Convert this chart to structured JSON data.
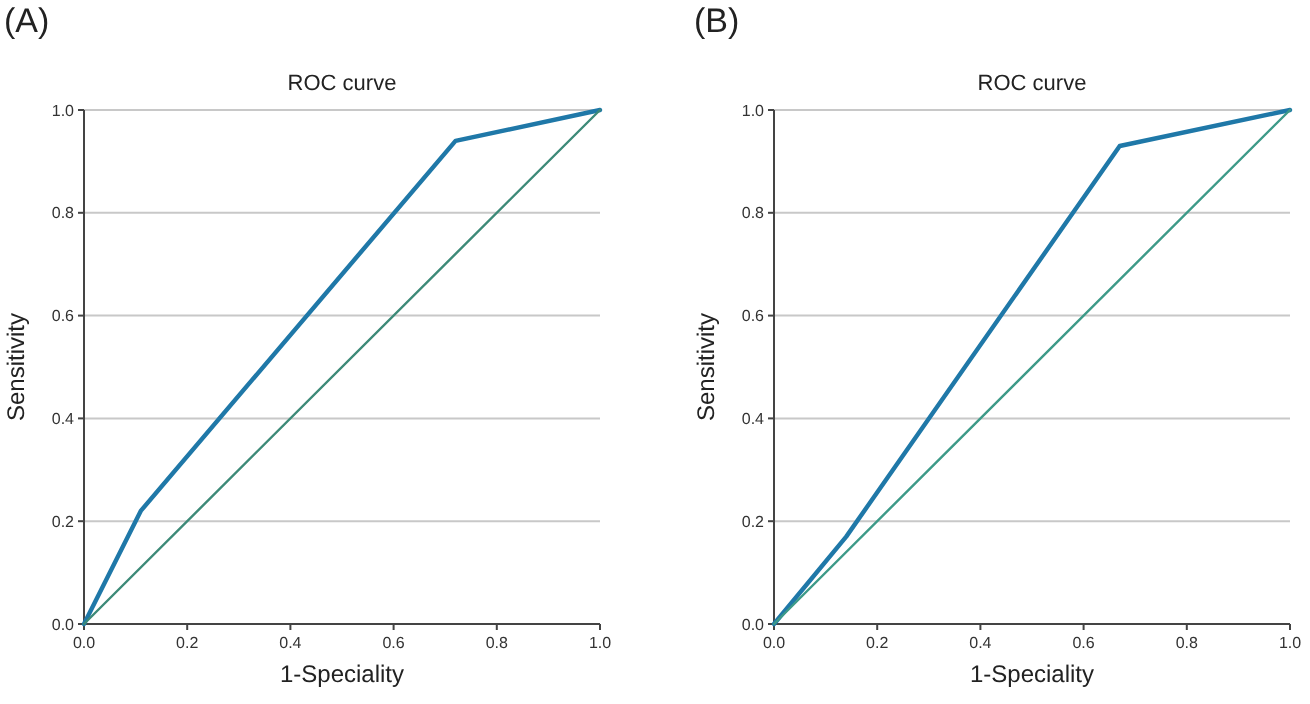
{
  "chart_data": [
    {
      "type": "line",
      "title": "ROC curve",
      "xlabel": "1-Speciality",
      "ylabel": "Sensitivity",
      "annotations": [
        "(A)"
      ],
      "xlim": [
        0,
        1
      ],
      "ylim": [
        0,
        1
      ],
      "xticks": [
        {
          "value": 0,
          "label": "0.0"
        },
        {
          "value": 0.2,
          "label": "0.2"
        },
        {
          "value": 0.4,
          "label": "0.4"
        },
        {
          "value": 0.6,
          "label": "0.6"
        },
        {
          "value": 0.8,
          "label": "0.8"
        },
        {
          "value": 1,
          "label": "1.0"
        }
      ],
      "yticks": [
        {
          "value": 0,
          "label": "0.0"
        },
        {
          "value": 0.2,
          "label": "0.2"
        },
        {
          "value": 0.4,
          "label": "0.4"
        },
        {
          "value": 0.6,
          "label": "0.6"
        },
        {
          "value": 0.8,
          "label": "0.8"
        },
        {
          "value": 1,
          "label": "1.0"
        }
      ],
      "grid": "y",
      "marker": "none",
      "series": [
        {
          "color": "#1f78a8",
          "x": [
            0,
            0.11,
            0.72,
            1
          ],
          "values": [
            0,
            0.22,
            0.94,
            1
          ]
        },
        {
          "color": "#3d8a78",
          "x": [
            0,
            1
          ],
          "values": [
            0,
            1
          ]
        }
      ]
    },
    {
      "type": "line",
      "title": "ROC curve",
      "xlabel": "1-Speciality",
      "ylabel": "Sensitivity",
      "annotations": [
        "(B)"
      ],
      "xlim": [
        0,
        1
      ],
      "ylim": [
        0,
        1
      ],
      "xticks": [
        {
          "value": 0,
          "label": "0.0"
        },
        {
          "value": 0.2,
          "label": "0.2"
        },
        {
          "value": 0.4,
          "label": "0.4"
        },
        {
          "value": 0.6,
          "label": "0.6"
        },
        {
          "value": 0.8,
          "label": "0.8"
        },
        {
          "value": 1,
          "label": "1.0"
        }
      ],
      "yticks": [
        {
          "value": 0,
          "label": "0.0"
        },
        {
          "value": 0.2,
          "label": "0.2"
        },
        {
          "value": 0.4,
          "label": "0.4"
        },
        {
          "value": 0.6,
          "label": "0.6"
        },
        {
          "value": 0.8,
          "label": "0.8"
        },
        {
          "value": 1,
          "label": "1.0"
        }
      ],
      "grid": "y",
      "marker": "none",
      "series": [
        {
          "color": "#1f78a8",
          "x": [
            0,
            0.14,
            0.67,
            1
          ],
          "values": [
            0,
            0.17,
            0.93,
            1
          ]
        },
        {
          "color": "#3d9a88",
          "x": [
            0,
            1
          ],
          "values": [
            0,
            1
          ]
        }
      ]
    }
  ]
}
